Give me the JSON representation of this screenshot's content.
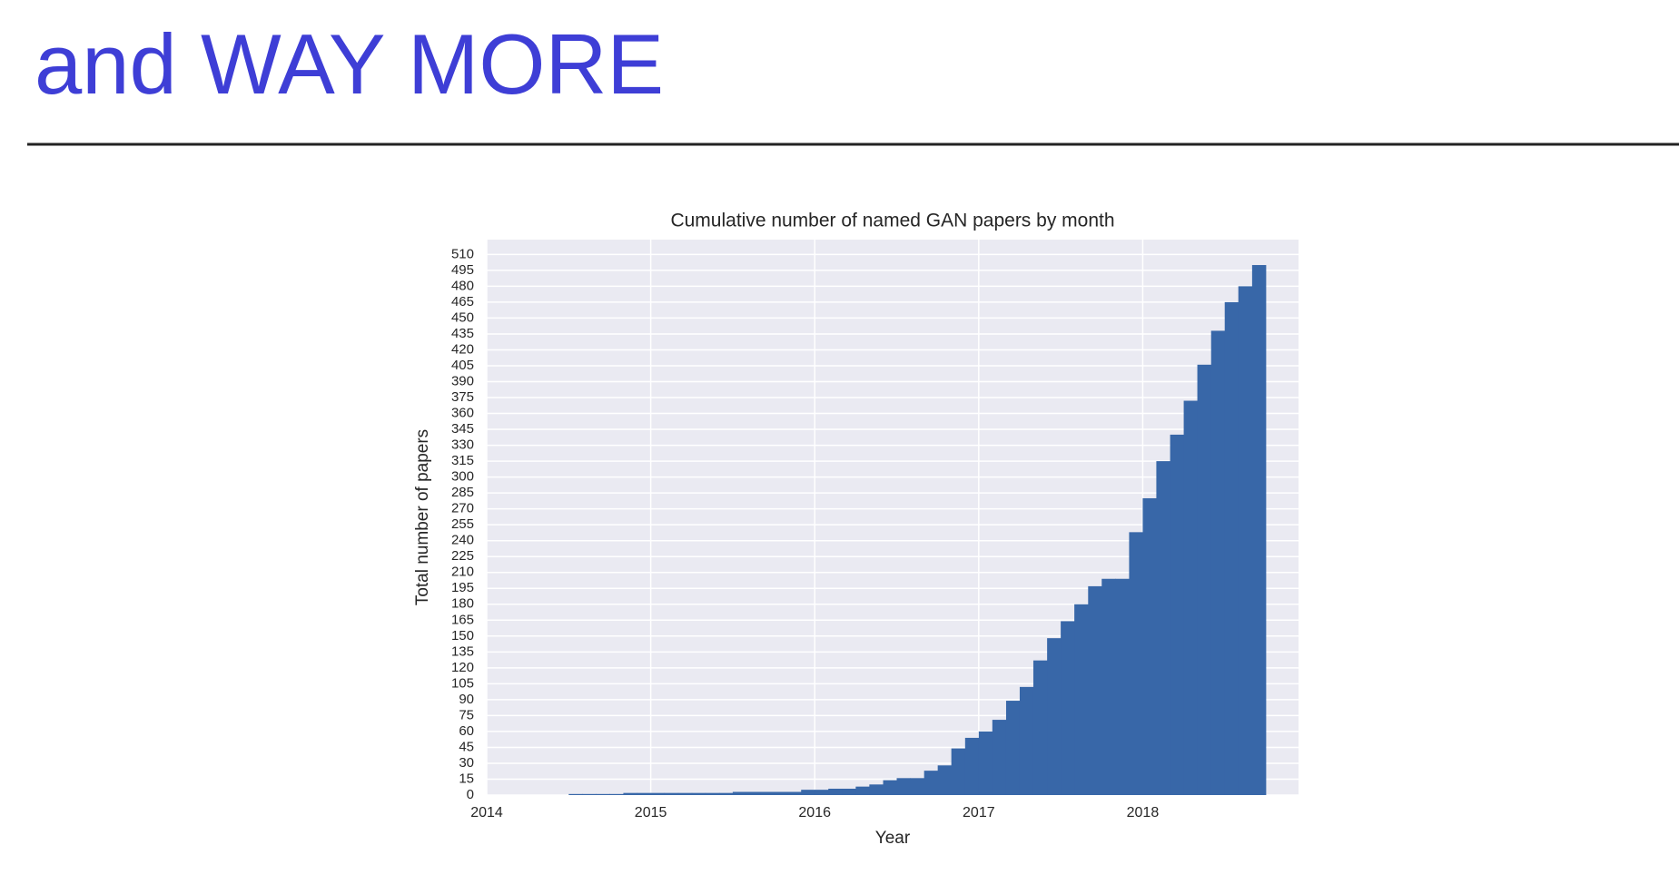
{
  "slide_title": "and WAY MORE",
  "chart_data": {
    "type": "histogram",
    "title": "Cumulative number of named GAN papers by month",
    "x_label": "Year",
    "y_label": "Total number of papers",
    "color": "#3867a8",
    "grid": true,
    "bins": [
      2014.5,
      2014.583,
      2014.667,
      2014.75,
      2014.833,
      2014.917,
      2015,
      2015.083,
      2015.167,
      2015.25,
      2015.333,
      2015.417,
      2015.5,
      2015.583,
      2015.667,
      2015.75,
      2015.833,
      2015.917,
      2016,
      2016.083,
      2016.167,
      2016.25,
      2016.333,
      2016.417,
      2016.5,
      2016.583,
      2016.667,
      2016.75,
      2016.833,
      2016.917,
      2017,
      2017.083,
      2017.167,
      2017.25,
      2017.333,
      2017.417,
      2017.5,
      2017.583,
      2017.667,
      2017.75,
      2017.833,
      2017.917,
      2018,
      2018.083,
      2018.167,
      2018.25,
      2018.333,
      2018.417,
      2018.5,
      2018.583,
      2018.667,
      2018.75
    ],
    "values": [
      1,
      1,
      1,
      1,
      2,
      2,
      2,
      2,
      2,
      2,
      2,
      2,
      3,
      3,
      3,
      3,
      3,
      5,
      5,
      6,
      6,
      8,
      10,
      14,
      16,
      16,
      23,
      28,
      44,
      54,
      60,
      71,
      89,
      102,
      127,
      148,
      164,
      180,
      197,
      204,
      204,
      248,
      280,
      315,
      340,
      372,
      406,
      438,
      465,
      480,
      500
    ],
    "xlim": [
      2014,
      2018.95
    ],
    "xticks": [
      2014,
      2015,
      2016,
      2017,
      2018
    ],
    "ylim": [
      0,
      524
    ],
    "yticks": [
      0,
      15,
      30,
      45,
      60,
      75,
      90,
      105,
      120,
      135,
      150,
      165,
      180,
      195,
      210,
      225,
      240,
      255,
      270,
      285,
      300,
      315,
      330,
      345,
      360,
      375,
      390,
      405,
      420,
      435,
      450,
      465,
      480,
      495,
      510
    ]
  }
}
